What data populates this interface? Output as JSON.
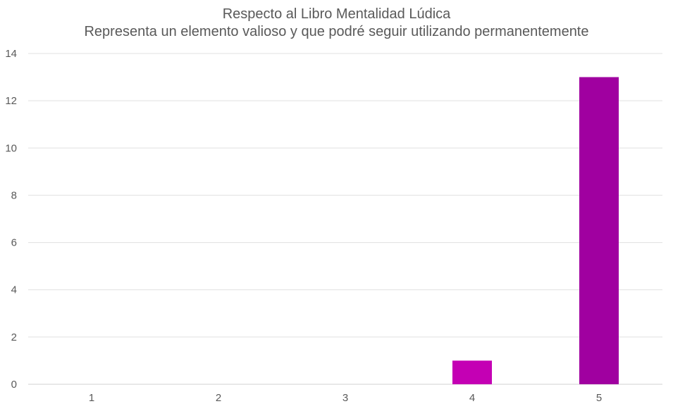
{
  "chart_data": {
    "type": "bar",
    "title": "Respecto al Libro Mentalidad Lúdica",
    "subtitle": "Representa un elemento valioso y que podré seguir utilizando permanentemente",
    "categories": [
      "1",
      "2",
      "3",
      "4",
      "5"
    ],
    "values": [
      0,
      0,
      0,
      1,
      13
    ],
    "bar_colors": [
      "#A000A0",
      "#A000A0",
      "#A000A0",
      "#C400B4",
      "#A000A0"
    ],
    "ylim": [
      0,
      14
    ],
    "yticks": [
      0,
      2,
      4,
      6,
      8,
      10,
      12,
      14
    ],
    "xlabel": "",
    "ylabel": "",
    "grid": true,
    "legend": "none"
  }
}
